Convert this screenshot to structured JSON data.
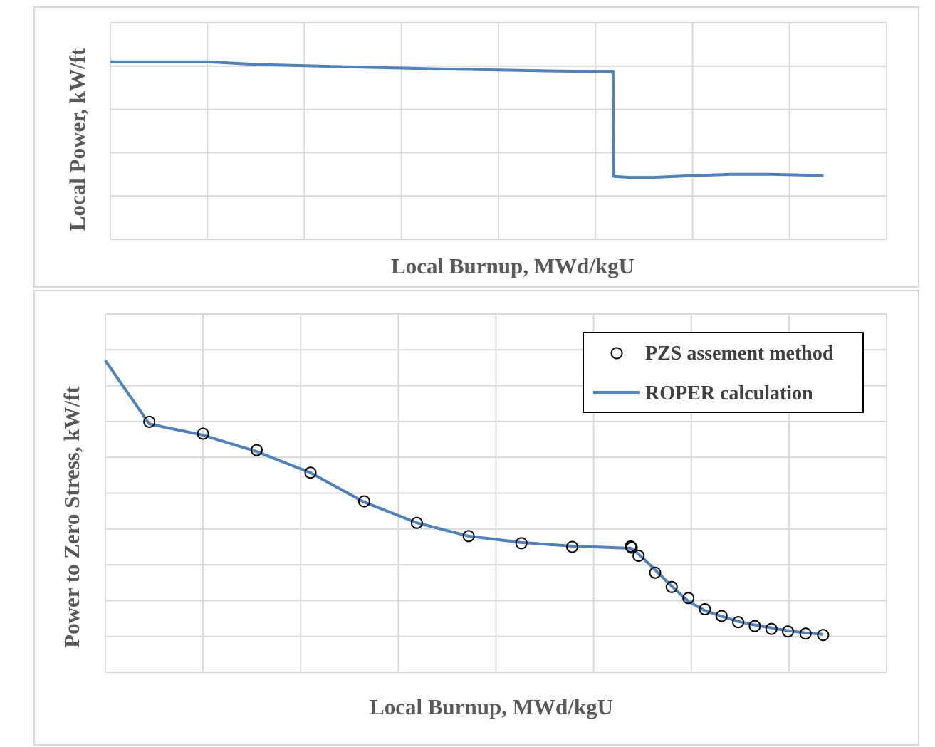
{
  "chart_data": [
    {
      "type": "line",
      "title": "",
      "xlabel": "Local Burnup, MWd/kgU",
      "ylabel": "Local Power, kW/ft",
      "xlim": [
        0,
        8
      ],
      "ylim": [
        0,
        5
      ],
      "x_ticks_labeled": false,
      "y_ticks_labeled": false,
      "grid": true,
      "legend": "none",
      "series": [
        {
          "color": "#4f81bd",
          "x": [
            0,
            1.0,
            1.5,
            2.5,
            3.5,
            4.5,
            5.18,
            5.19,
            5.35,
            5.6,
            6.0,
            6.4,
            6.8,
            7.2,
            7.35
          ],
          "y": [
            4.1,
            4.1,
            4.04,
            3.98,
            3.93,
            3.89,
            3.87,
            1.45,
            1.43,
            1.43,
            1.47,
            1.5,
            1.5,
            1.48,
            1.47
          ]
        }
      ]
    },
    {
      "type": "scatter",
      "title": "",
      "xlabel": "Local Burnup, MWd/kgU",
      "ylabel": "Power to Zero Stress, kW/ft",
      "xlim": [
        0,
        8
      ],
      "ylim": [
        0,
        10
      ],
      "x_ticks_labeled": false,
      "y_ticks_labeled": false,
      "grid": true,
      "legend": "top-right",
      "series": [
        {
          "name": "PZS assement method",
          "marker": "circle-open",
          "color": "#000000",
          "x": [
            0.45,
            1.0,
            1.55,
            2.1,
            2.65,
            3.19,
            3.72,
            4.26,
            4.78,
            5.38,
            5.39,
            5.46,
            5.63,
            5.8,
            5.97,
            6.14,
            6.31,
            6.48,
            6.65,
            6.82,
            6.99,
            7.17,
            7.35
          ],
          "y": [
            6.99,
            6.66,
            6.2,
            5.57,
            4.77,
            4.17,
            3.8,
            3.6,
            3.5,
            3.51,
            3.48,
            3.25,
            2.78,
            2.38,
            2.07,
            1.76,
            1.57,
            1.4,
            1.29,
            1.21,
            1.14,
            1.08,
            1.04
          ]
        },
        {
          "name": "ROPER calculation",
          "type": "line",
          "color": "#4f81bd",
          "x": [
            0,
            0.45,
            1.0,
            1.55,
            2.1,
            2.65,
            3.19,
            3.72,
            4.26,
            4.78,
            5.38,
            5.46,
            5.63,
            5.8,
            5.97,
            6.14,
            6.31,
            6.48,
            6.65,
            6.82,
            6.99,
            7.17,
            7.35
          ],
          "y": [
            8.7,
            6.93,
            6.62,
            6.16,
            5.57,
            4.75,
            4.17,
            3.8,
            3.62,
            3.52,
            3.46,
            3.3,
            2.86,
            2.4,
            1.98,
            1.72,
            1.56,
            1.42,
            1.32,
            1.24,
            1.16,
            1.1,
            1.06
          ]
        }
      ]
    }
  ]
}
